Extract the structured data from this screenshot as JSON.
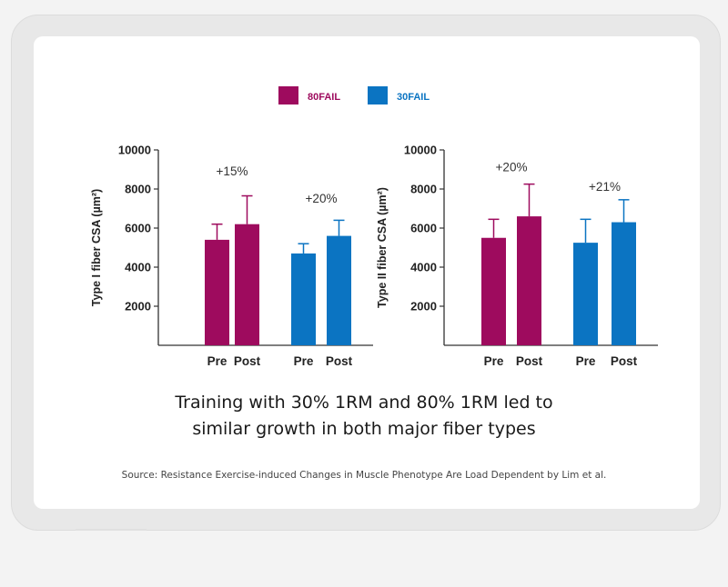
{
  "colors": {
    "fail80": "#9e0b5e",
    "fail30": "#0b74c2"
  },
  "legend": [
    {
      "label": "80FAIL",
      "color": "#9e0b5e"
    },
    {
      "label": "30FAIL",
      "color": "#0b74c2"
    }
  ],
  "caption": {
    "line1": "Training with 30% 1RM and 80% 1RM led to",
    "line2": "similar growth in both major fiber types"
  },
  "source": "Source: Resistance Exercise-induced Changes in Muscle Phenotype Are Load Dependent by Lim et al.",
  "chart_data": [
    {
      "type": "bar",
      "ylabel": "Type I fiber CSA (µm²)",
      "ylim": [
        0,
        10000
      ],
      "yticks": [
        2000,
        4000,
        6000,
        8000,
        10000
      ],
      "categories": [
        "Pre",
        "Post",
        "Pre",
        "Post"
      ],
      "groups": [
        "80FAIL",
        "80FAIL",
        "30FAIL",
        "30FAIL"
      ],
      "values": [
        5400,
        6200,
        4700,
        5600
      ],
      "errors": [
        800,
        1450,
        500,
        800
      ],
      "annotations": [
        {
          "text": "+15%",
          "group": "80FAIL",
          "y": 8700
        },
        {
          "text": "+20%",
          "group": "30FAIL",
          "y": 7300
        }
      ]
    },
    {
      "type": "bar",
      "ylabel": "Type II fiber CSA (µm²)",
      "ylim": [
        0,
        10000
      ],
      "yticks": [
        2000,
        4000,
        6000,
        8000,
        10000
      ],
      "categories": [
        "Pre",
        "Post",
        "Pre",
        "Post"
      ],
      "groups": [
        "80FAIL",
        "80FAIL",
        "30FAIL",
        "30FAIL"
      ],
      "values": [
        5500,
        6600,
        5250,
        6300
      ],
      "errors": [
        950,
        1650,
        1200,
        1150
      ],
      "annotations": [
        {
          "text": "+20%",
          "group": "80FAIL",
          "y": 8900
        },
        {
          "text": "+21%",
          "group": "30FAIL",
          "y": 7900
        }
      ]
    }
  ]
}
